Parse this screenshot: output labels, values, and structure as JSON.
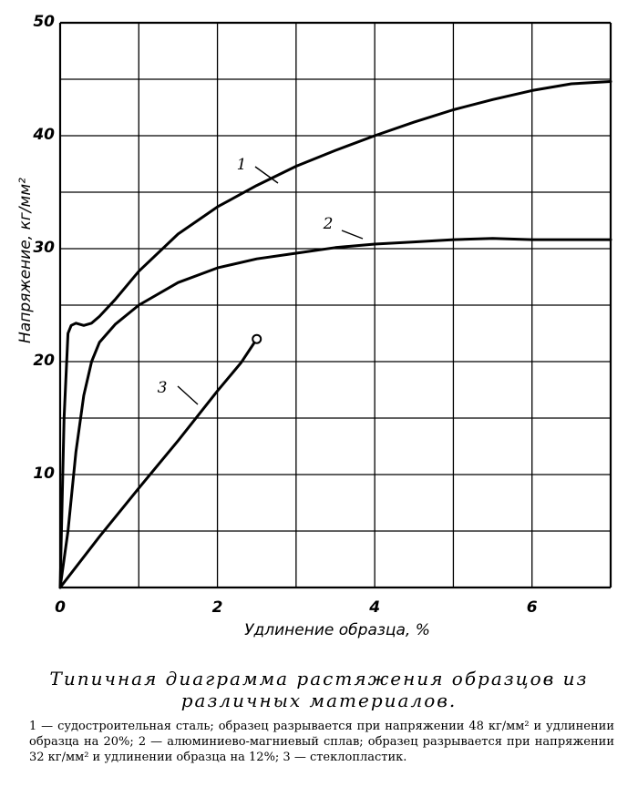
{
  "chart_data": {
    "type": "line",
    "xlabel": "Удлинение образца, %",
    "ylabel": "Напряжение, кг/мм²",
    "xlim": [
      0,
      7
    ],
    "ylim": [
      0,
      50
    ],
    "x_ticks": [
      "0",
      "2",
      "4",
      "6"
    ],
    "y_ticks": [
      "10",
      "20",
      "30",
      "40",
      "50"
    ],
    "grid": true,
    "series": [
      {
        "name": "1",
        "x": [
          0,
          0.05,
          0.1,
          0.14,
          0.2,
          0.3,
          0.4,
          0.5,
          0.7,
          1.0,
          1.5,
          2.0,
          2.5,
          3.0,
          3.5,
          4.0,
          4.5,
          5.0,
          5.5,
          6.0,
          6.5,
          7.0
        ],
        "y": [
          0,
          15,
          22.5,
          23.2,
          23.4,
          23.2,
          23.4,
          24.0,
          25.5,
          28.0,
          31.3,
          33.7,
          35.6,
          37.3,
          38.7,
          40.0,
          41.2,
          42.3,
          43.2,
          44.0,
          44.6,
          44.8
        ]
      },
      {
        "name": "2",
        "x": [
          0,
          0.1,
          0.2,
          0.3,
          0.4,
          0.5,
          0.7,
          1.0,
          1.5,
          2.0,
          2.5,
          3.0,
          3.5,
          4.0,
          4.5,
          5.0,
          5.5,
          6.0,
          6.5,
          7.0
        ],
        "y": [
          0,
          5.0,
          12.0,
          17.0,
          20.0,
          21.7,
          23.3,
          25.0,
          27.0,
          28.3,
          29.1,
          29.6,
          30.1,
          30.4,
          30.6,
          30.8,
          30.9,
          30.8,
          30.8,
          30.8
        ]
      },
      {
        "name": "3",
        "x": [
          0,
          0.5,
          1.0,
          1.5,
          2.0,
          2.3,
          2.5
        ],
        "y": [
          0,
          4.5,
          8.8,
          13.0,
          17.4,
          19.9,
          22.0
        ]
      }
    ]
  },
  "caption": {
    "title": "Типичная диаграмма растяжения образцов из различных материалов.",
    "note": "1 — судостроительная сталь; образец разрывается при напряжении 48 кг/мм² и удлинении образца на 20%; 2 — алюминиево-магниевый сплав; образец разрывается при напряжении 32 кг/мм² и удлинении образца на 12%; 3 — стеклопластик."
  }
}
